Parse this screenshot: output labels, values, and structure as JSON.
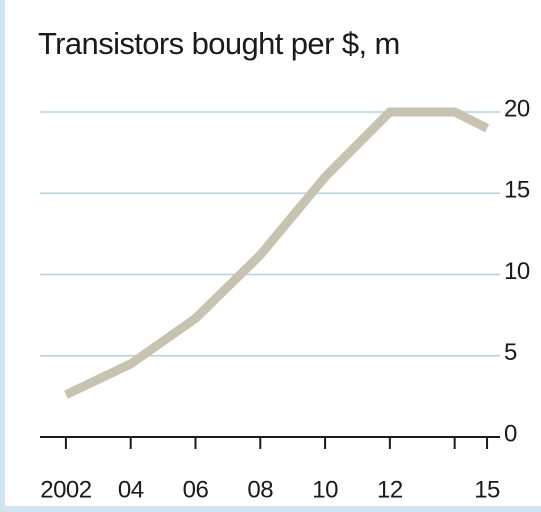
{
  "chart_data": {
    "type": "line",
    "title": "Transistors bought per $, m",
    "x": [
      2002,
      2004,
      2006,
      2008,
      2010,
      2012,
      2014,
      2015
    ],
    "series": [
      {
        "name": "Transistors bought per $",
        "color": "#c7c3b3",
        "values": [
          2.6,
          4.5,
          7.3,
          11.2,
          16,
          20,
          20,
          19
        ]
      }
    ],
    "xlim": [
      2001.2,
      2015.4
    ],
    "xticks": [
      {
        "value": 2002,
        "label": "2002"
      },
      {
        "value": 2004,
        "label": "04"
      },
      {
        "value": 2006,
        "label": "06"
      },
      {
        "value": 2008,
        "label": "08"
      },
      {
        "value": 2010,
        "label": "10"
      },
      {
        "value": 2012,
        "label": "12"
      },
      {
        "value": 2014,
        "label": null
      },
      {
        "value": 2015,
        "label": "15"
      }
    ],
    "ylim": [
      0,
      20
    ],
    "yticks": [
      0,
      5,
      10,
      15,
      20
    ],
    "grid": true,
    "grid_color": "#b5d0de",
    "axis_side": "right"
  }
}
